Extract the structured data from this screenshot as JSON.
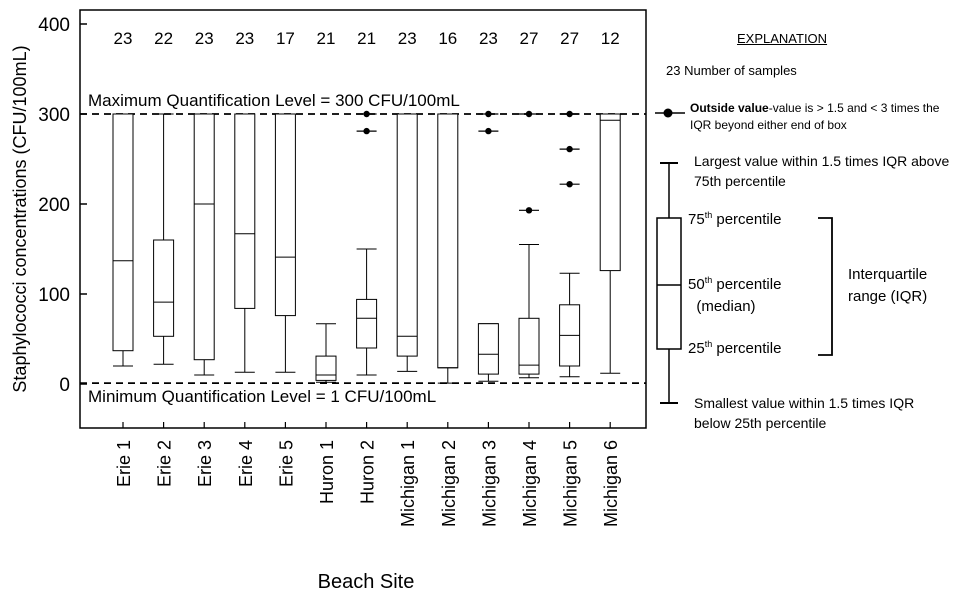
{
  "chart_data": {
    "type": "boxplot",
    "xlabel": "Beach Site",
    "ylabel": "Staphylococci concentrations (CFU/100mL)",
    "ylim": [
      -50,
      400
    ],
    "yticks": [
      0,
      100,
      200,
      300,
      400
    ],
    "categories": [
      "Erie 1",
      "Erie 2",
      "Erie 3",
      "Erie 4",
      "Erie 5",
      "Huron 1",
      "Huron 2",
      "Michigan 1",
      "Michigan 2",
      "Michigan 3",
      "Michigan 4",
      "Michigan 5",
      "Michigan 6"
    ],
    "sample_counts": [
      23,
      22,
      23,
      23,
      17,
      21,
      21,
      23,
      16,
      23,
      27,
      27,
      12
    ],
    "boxes": [
      {
        "whisker_low": 20,
        "q1": 37,
        "median": 137,
        "q3": 300,
        "whisker_high": 300,
        "outliers": []
      },
      {
        "whisker_low": 22,
        "q1": 53,
        "median": 91,
        "q3": 160,
        "whisker_high": 300,
        "outliers": []
      },
      {
        "whisker_low": 10,
        "q1": 27,
        "median": 200,
        "q3": 300,
        "whisker_high": 300,
        "outliers": []
      },
      {
        "whisker_low": 13,
        "q1": 84,
        "median": 167,
        "q3": 300,
        "whisker_high": 300,
        "outliers": []
      },
      {
        "whisker_low": 13,
        "q1": 76,
        "median": 141,
        "q3": 300,
        "whisker_high": 300,
        "outliers": []
      },
      {
        "whisker_low": 2,
        "q1": 4,
        "median": 10,
        "q3": 31,
        "whisker_high": 67,
        "outliers": []
      },
      {
        "whisker_low": 10,
        "q1": 40,
        "median": 73,
        "q3": 94,
        "whisker_high": 150,
        "outliers": [
          300,
          281
        ]
      },
      {
        "whisker_low": 14,
        "q1": 31,
        "median": 53,
        "q3": 300,
        "whisker_high": 300,
        "outliers": []
      },
      {
        "whisker_low": 1,
        "q1": 18,
        "median": 18,
        "q3": 300,
        "whisker_high": 300,
        "outliers": []
      },
      {
        "whisker_low": 3,
        "q1": 11,
        "median": 33,
        "q3": 67,
        "whisker_high": 67,
        "outliers": [
          300,
          281
        ]
      },
      {
        "whisker_low": 7,
        "q1": 11,
        "median": 21,
        "q3": 73,
        "whisker_high": 155,
        "outliers": [
          300,
          193
        ]
      },
      {
        "whisker_low": 8,
        "q1": 20,
        "median": 54,
        "q3": 88,
        "whisker_high": 123,
        "outliers": [
          300,
          261,
          222
        ]
      },
      {
        "whisker_low": 12,
        "q1": 126,
        "median": 293,
        "q3": 300,
        "whisker_high": 300,
        "outliers": []
      }
    ],
    "reference_lines": [
      {
        "value": 300,
        "label": "Maximum Quantification Level = 300 CFU/100mL"
      },
      {
        "value": 1,
        "label": "Minimum Quantification Level = 1 CFU/100mL"
      }
    ],
    "grid": false
  },
  "explanation": {
    "heading": "EXPLANATION",
    "count_example": "23",
    "count_label": "Number of samples",
    "outside_bold": "Outside value",
    "outside_rest": "-value  is > 1.5 and < 3 times the IQR beyond either end of box",
    "largest": "Largest value within 1.5 times IQR above 75th percentile",
    "p75_num": "75",
    "p75_sup": "th",
    "p75_word": "percentile",
    "p50_num": "50",
    "p50_sup": "th",
    "p50_word": "percentile",
    "p50_median": "(median)",
    "p25_num": "25",
    "p25_sup": "th",
    "p25_word": "percentile",
    "iqr_line1": "Interquartile",
    "iqr_line2": "range (IQR)",
    "smallest": "Smallest value within 1.5 times IQR below 25th percentile"
  }
}
